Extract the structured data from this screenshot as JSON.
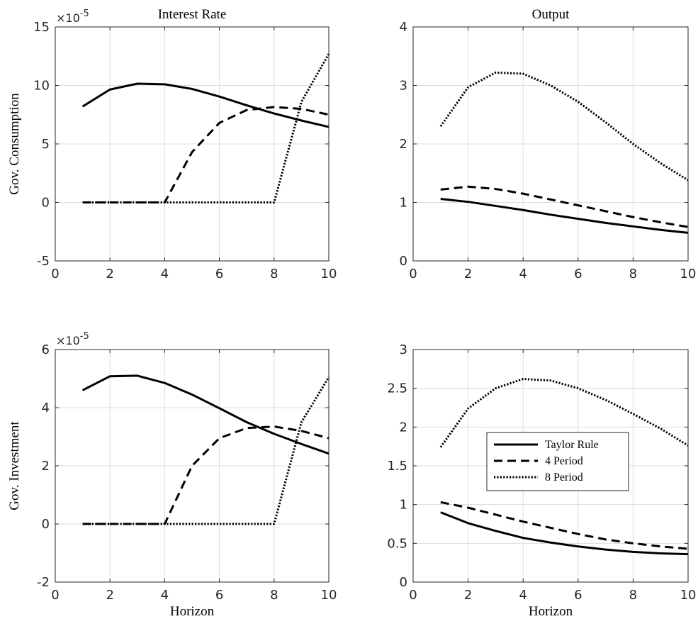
{
  "chart_data": [
    {
      "type": "line",
      "panel": "top-left",
      "title": "Interest Rate",
      "xlabel": "",
      "ylabel": "Gov. Consumption",
      "xlim": [
        0,
        10
      ],
      "ylim": [
        -5,
        15
      ],
      "xticks": [
        0,
        2,
        4,
        6,
        8,
        10
      ],
      "yticks": [
        -5,
        0,
        5,
        10,
        15
      ],
      "exponent_label": "×10",
      "exponent_power": "-5",
      "grid": true,
      "x": [
        1,
        2,
        3,
        4,
        5,
        6,
        7,
        8,
        9,
        10
      ],
      "series": [
        {
          "style": "solid",
          "values": [
            8.2,
            9.65,
            10.15,
            10.1,
            9.7,
            9.05,
            8.3,
            7.6,
            7.0,
            6.45
          ]
        },
        {
          "style": "dashed",
          "values": [
            0,
            0,
            0,
            0,
            4.3,
            6.8,
            7.9,
            8.15,
            8.0,
            7.5
          ]
        },
        {
          "style": "dotted",
          "values": [
            0,
            0,
            0,
            0,
            0,
            0,
            0,
            0,
            8.6,
            12.7
          ]
        }
      ]
    },
    {
      "type": "line",
      "panel": "top-right",
      "title": "Output",
      "xlabel": "",
      "ylabel": "",
      "xlim": [
        0,
        10
      ],
      "ylim": [
        0,
        4
      ],
      "xticks": [
        0,
        2,
        4,
        6,
        8,
        10
      ],
      "yticks": [
        0,
        1,
        2,
        3,
        4
      ],
      "grid": true,
      "x": [
        1,
        2,
        3,
        4,
        5,
        6,
        7,
        8,
        9,
        10
      ],
      "series": [
        {
          "style": "solid",
          "values": [
            1.06,
            1.01,
            0.94,
            0.87,
            0.79,
            0.72,
            0.65,
            0.59,
            0.53,
            0.48
          ]
        },
        {
          "style": "dashed",
          "values": [
            1.22,
            1.27,
            1.23,
            1.15,
            1.05,
            0.95,
            0.85,
            0.75,
            0.66,
            0.58
          ]
        },
        {
          "style": "dotted",
          "values": [
            2.3,
            2.97,
            3.22,
            3.2,
            3.0,
            2.72,
            2.37,
            2.0,
            1.67,
            1.38
          ]
        }
      ]
    },
    {
      "type": "line",
      "panel": "bottom-left",
      "title": "",
      "xlabel": "Horizon",
      "ylabel": "Gov. Investment",
      "xlim": [
        0,
        10
      ],
      "ylim": [
        -2,
        6
      ],
      "xticks": [
        0,
        2,
        4,
        6,
        8,
        10
      ],
      "yticks": [
        -2,
        0,
        2,
        4,
        6
      ],
      "exponent_label": "×10",
      "exponent_power": "-5",
      "grid": true,
      "x": [
        1,
        2,
        3,
        4,
        5,
        6,
        7,
        8,
        9,
        10
      ],
      "series": [
        {
          "style": "solid",
          "values": [
            4.6,
            5.08,
            5.1,
            4.85,
            4.45,
            3.98,
            3.5,
            3.1,
            2.75,
            2.42
          ]
        },
        {
          "style": "dashed",
          "values": [
            0,
            0,
            0,
            0,
            2.0,
            2.95,
            3.3,
            3.35,
            3.2,
            2.95
          ]
        },
        {
          "style": "dotted",
          "values": [
            0,
            0,
            0,
            0,
            0,
            0,
            0,
            0,
            3.5,
            5.05
          ]
        }
      ]
    },
    {
      "type": "line",
      "panel": "bottom-right",
      "title": "",
      "xlabel": "Horizon",
      "ylabel": "",
      "xlim": [
        0,
        10
      ],
      "ylim": [
        0,
        3
      ],
      "xticks": [
        0,
        2,
        4,
        6,
        8,
        10
      ],
      "yticks": [
        0,
        0.5,
        1,
        1.5,
        2,
        2.5,
        3
      ],
      "ytick_labels": [
        "0",
        "0.5",
        "1",
        "1.5",
        "2",
        "2.5",
        "3"
      ],
      "grid": true,
      "legend": "center",
      "x": [
        1,
        2,
        3,
        4,
        5,
        6,
        7,
        8,
        9,
        10
      ],
      "series": [
        {
          "name": "Taylor Rule",
          "style": "solid",
          "values": [
            0.9,
            0.76,
            0.66,
            0.57,
            0.51,
            0.46,
            0.42,
            0.39,
            0.37,
            0.36
          ]
        },
        {
          "name": "4 Period",
          "style": "dashed",
          "values": [
            1.03,
            0.96,
            0.87,
            0.78,
            0.7,
            0.62,
            0.55,
            0.5,
            0.46,
            0.43
          ]
        },
        {
          "name": "8 Period",
          "style": "dotted",
          "values": [
            1.74,
            2.24,
            2.5,
            2.62,
            2.6,
            2.5,
            2.35,
            2.17,
            1.98,
            1.76
          ]
        }
      ]
    }
  ]
}
